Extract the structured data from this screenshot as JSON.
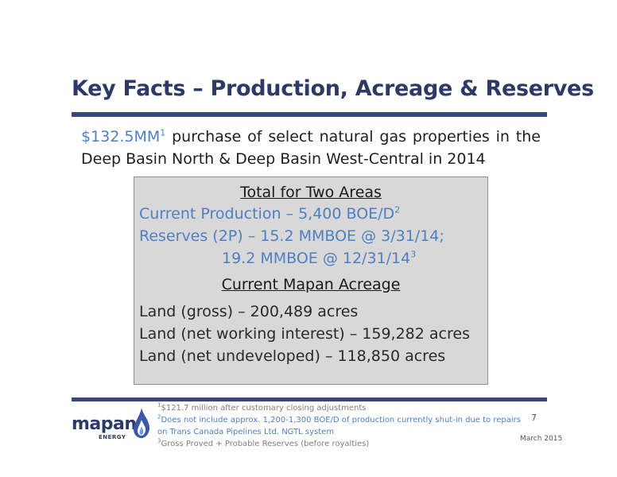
{
  "slide": {
    "title": "Key Facts – Production, Acreage & Reserves",
    "intro": {
      "amount": "$132.5MM",
      "amount_sup": "1",
      "rest": " purchase of select natural gas properties in the Deep Basin North & Deep Basin West-Central in 2014"
    },
    "box": {
      "total_header": "Total for Two Areas",
      "production": "Current Production – 5,400 BOE/D",
      "production_sup": "2",
      "reserves_1": "Reserves (2P) – 15.2 MMBOE @ 3/31/14;",
      "reserves_2": "19.2 MMBOE @ 12/31/14",
      "reserves_sup": "3",
      "acreage_header": "Current Mapan Acreage",
      "land_gross": "Land (gross) – 200,489 acres",
      "land_net_wi": "Land (net working interest) – 159,282 acres",
      "land_net_undev": "Land (net undeveloped) – 118,850 acres"
    },
    "footnotes": {
      "fn1_sup": "1",
      "fn1": "$121.7 million after customary closing adjustments",
      "fn2_sup": "2",
      "fn2": "Does not include approx. 1,200-1,300 BOE/D of production currently shut-in due to repairs on Trans Canada Pipelines Ltd. NGTL system",
      "fn3_sup": "3",
      "fn3": "Gross Proved + Probable Reserves (before royalties)"
    },
    "logo": {
      "word": "mapan",
      "sub": "ENERGY",
      "icon": "flame-drop-icon"
    },
    "page_number": "7",
    "date": "March 2015"
  }
}
